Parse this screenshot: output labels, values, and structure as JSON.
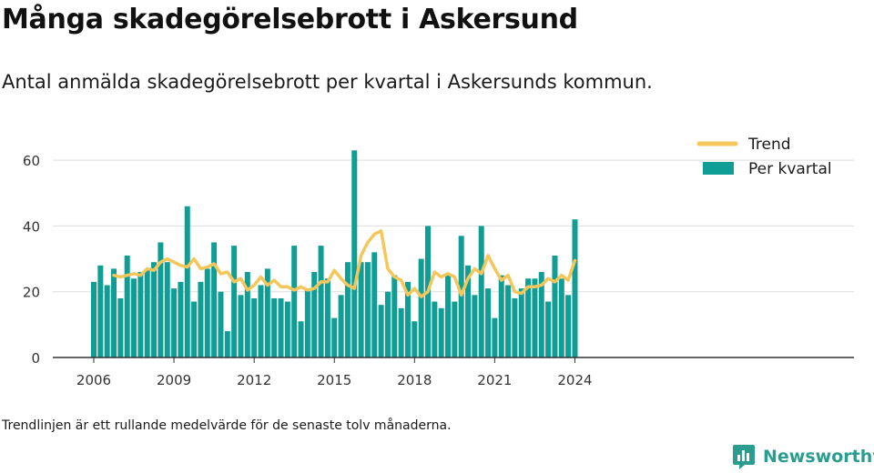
{
  "title": "Många skadegörelsebrott i Askersund",
  "subtitle": "Antal anmälda skadegörelsebrott per kvartal i Askersunds kommun.",
  "footnote": "Trendlinjen är ett rullande medelvärde för de senaste tolv månaderna.",
  "brand": {
    "name": "Newsworthy"
  },
  "colors": {
    "bar": "#0f9e95",
    "trend": "#f5c65a",
    "grid": "#dddddd",
    "axis": "#333333",
    "brand": "#2a9d8f"
  },
  "chart_data": {
    "type": "bar",
    "title": "",
    "xlabel": "",
    "ylabel": "",
    "ylim": [
      0,
      70
    ],
    "yticks": [
      0,
      20,
      40,
      60
    ],
    "xticks": [
      2006,
      2009,
      2012,
      2015,
      2018,
      2021,
      2024
    ],
    "grid": true,
    "legend_position": "top-right",
    "categories": [
      "2006 Q1",
      "2006 Q2",
      "2006 Q3",
      "2006 Q4",
      "2007 Q1",
      "2007 Q2",
      "2007 Q3",
      "2007 Q4",
      "2008 Q1",
      "2008 Q2",
      "2008 Q3",
      "2008 Q4",
      "2009 Q1",
      "2009 Q2",
      "2009 Q3",
      "2009 Q4",
      "2010 Q1",
      "2010 Q2",
      "2010 Q3",
      "2010 Q4",
      "2011 Q1",
      "2011 Q2",
      "2011 Q3",
      "2011 Q4",
      "2012 Q1",
      "2012 Q2",
      "2012 Q3",
      "2012 Q4",
      "2013 Q1",
      "2013 Q2",
      "2013 Q3",
      "2013 Q4",
      "2014 Q1",
      "2014 Q2",
      "2014 Q3",
      "2014 Q4",
      "2015 Q1",
      "2015 Q2",
      "2015 Q3",
      "2015 Q4",
      "2016 Q1",
      "2016 Q2",
      "2016 Q3",
      "2016 Q4",
      "2017 Q1",
      "2017 Q2",
      "2017 Q3",
      "2017 Q4",
      "2018 Q1",
      "2018 Q2",
      "2018 Q3",
      "2018 Q4",
      "2019 Q1",
      "2019 Q2",
      "2019 Q3",
      "2019 Q4",
      "2020 Q1",
      "2020 Q2",
      "2020 Q3",
      "2020 Q4",
      "2021 Q1",
      "2021 Q2",
      "2021 Q3",
      "2021 Q4",
      "2022 Q1",
      "2022 Q2",
      "2022 Q3",
      "2022 Q4",
      "2023 Q1",
      "2023 Q2",
      "2023 Q3",
      "2023 Q4",
      "2024 Q1"
    ],
    "series": [
      {
        "name": "Per kvartal",
        "type": "bar",
        "values": [
          23,
          28,
          22,
          27,
          18,
          31,
          24,
          26,
          27,
          29,
          35,
          29,
          21,
          23,
          46,
          17,
          23,
          27,
          35,
          20,
          8,
          34,
          19,
          26,
          18,
          22,
          27,
          18,
          18,
          17,
          34,
          11,
          21,
          26,
          34,
          24,
          12,
          19,
          29,
          63,
          29,
          29,
          32,
          16,
          20,
          25,
          15,
          23,
          11,
          30,
          40,
          17,
          15,
          25,
          17,
          37,
          28,
          19,
          40,
          21,
          12,
          25,
          22,
          18,
          21,
          24,
          24,
          26,
          17,
          31,
          24,
          19,
          42
        ]
      },
      {
        "name": "Trend",
        "type": "line",
        "values": [
          null,
          null,
          null,
          25,
          24.5,
          25,
          25.5,
          25,
          27,
          26.5,
          29,
          30,
          29,
          28,
          27.5,
          30,
          27,
          27.5,
          28.5,
          25.5,
          26,
          23,
          24,
          20.5,
          22,
          24.5,
          22,
          23.5,
          21.5,
          21.5,
          20.5,
          21.5,
          20.5,
          21,
          23,
          23,
          26.5,
          24,
          22,
          21,
          31,
          35,
          37.5,
          38.5,
          27,
          24.5,
          23.5,
          19,
          21,
          18.5,
          20,
          26,
          24.5,
          25.5,
          24.5,
          19,
          24,
          27,
          25.5,
          31,
          27,
          23.5,
          25,
          20,
          19.5,
          21.5,
          21.5,
          22,
          24,
          23,
          25,
          23.5,
          29.5
        ]
      }
    ]
  }
}
